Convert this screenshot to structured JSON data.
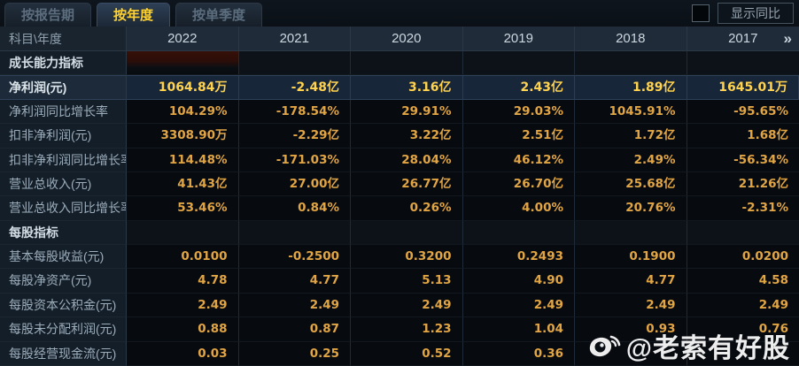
{
  "tabs": [
    {
      "name": "tab-by-report-period",
      "label": "按报告期",
      "active": false
    },
    {
      "name": "tab-by-year",
      "label": "按年度",
      "active": true
    },
    {
      "name": "tab-by-single-quarter",
      "label": "按单季度",
      "active": false
    }
  ],
  "controls": {
    "show_yoy_label": "显示同比",
    "checkbox_checked": false
  },
  "table": {
    "corner_label": "科目\\年度",
    "years": [
      "2022",
      "2021",
      "2020",
      "2019",
      "2018",
      "2017"
    ],
    "more_columns_icon": "»",
    "rows": [
      {
        "type": "section",
        "label": "成长能力指标",
        "values": [
          "",
          "",
          "",
          "",
          "",
          ""
        ]
      },
      {
        "type": "highlight",
        "label": "净利润(元)",
        "values": [
          "1064.84万",
          "-2.48亿",
          "3.16亿",
          "2.43亿",
          "1.89亿",
          "1645.01万"
        ]
      },
      {
        "type": "data",
        "label": "净利润同比增长率",
        "values": [
          "104.29%",
          "-178.54%",
          "29.91%",
          "29.03%",
          "1045.91%",
          "-95.65%"
        ]
      },
      {
        "type": "data",
        "label": "扣非净利润(元)",
        "values": [
          "3308.90万",
          "-2.29亿",
          "3.22亿",
          "2.51亿",
          "1.72亿",
          "1.68亿"
        ]
      },
      {
        "type": "data",
        "label": "扣非净利润同比增长率",
        "values": [
          "114.48%",
          "-171.03%",
          "28.04%",
          "46.12%",
          "2.49%",
          "-56.34%"
        ]
      },
      {
        "type": "data",
        "label": "营业总收入(元)",
        "values": [
          "41.43亿",
          "27.00亿",
          "26.77亿",
          "26.70亿",
          "25.68亿",
          "21.26亿"
        ]
      },
      {
        "type": "data",
        "label": "营业总收入同比增长率",
        "values": [
          "53.46%",
          "0.84%",
          "0.26%",
          "4.00%",
          "20.76%",
          "-2.31%"
        ]
      },
      {
        "type": "section",
        "label": "每股指标",
        "values": [
          "",
          "",
          "",
          "",
          "",
          ""
        ]
      },
      {
        "type": "data",
        "label": "基本每股收益(元)",
        "values": [
          "0.0100",
          "-0.2500",
          "0.3200",
          "0.2493",
          "0.1900",
          "0.0200"
        ]
      },
      {
        "type": "data",
        "label": "每股净资产(元)",
        "values": [
          "4.78",
          "4.77",
          "5.13",
          "4.90",
          "4.77",
          "4.58"
        ]
      },
      {
        "type": "data",
        "label": "每股资本公积金(元)",
        "values": [
          "2.49",
          "2.49",
          "2.49",
          "2.49",
          "2.49",
          "2.49"
        ]
      },
      {
        "type": "data",
        "label": "每股未分配利润(元)",
        "values": [
          "0.88",
          "0.87",
          "1.23",
          "1.04",
          "0.93",
          "0.76"
        ]
      },
      {
        "type": "data",
        "label": "每股经营现金流(元)",
        "values": [
          "0.03",
          "0.25",
          "0.52",
          "0.36",
          "",
          ""
        ]
      }
    ]
  },
  "watermark": {
    "icon": "weibo-icon",
    "text": "@老索有好股"
  },
  "colors": {
    "background": "#05080c",
    "active_tab_text": "#ffd22e",
    "header_bg": "#1f2b39",
    "label_col_bg": "#141e29",
    "value_text": "#e2a544",
    "highlight_row_bg": "#18263a",
    "highlight_value_text": "#ffd34f",
    "selected_column_tint": "#2c0e08"
  }
}
